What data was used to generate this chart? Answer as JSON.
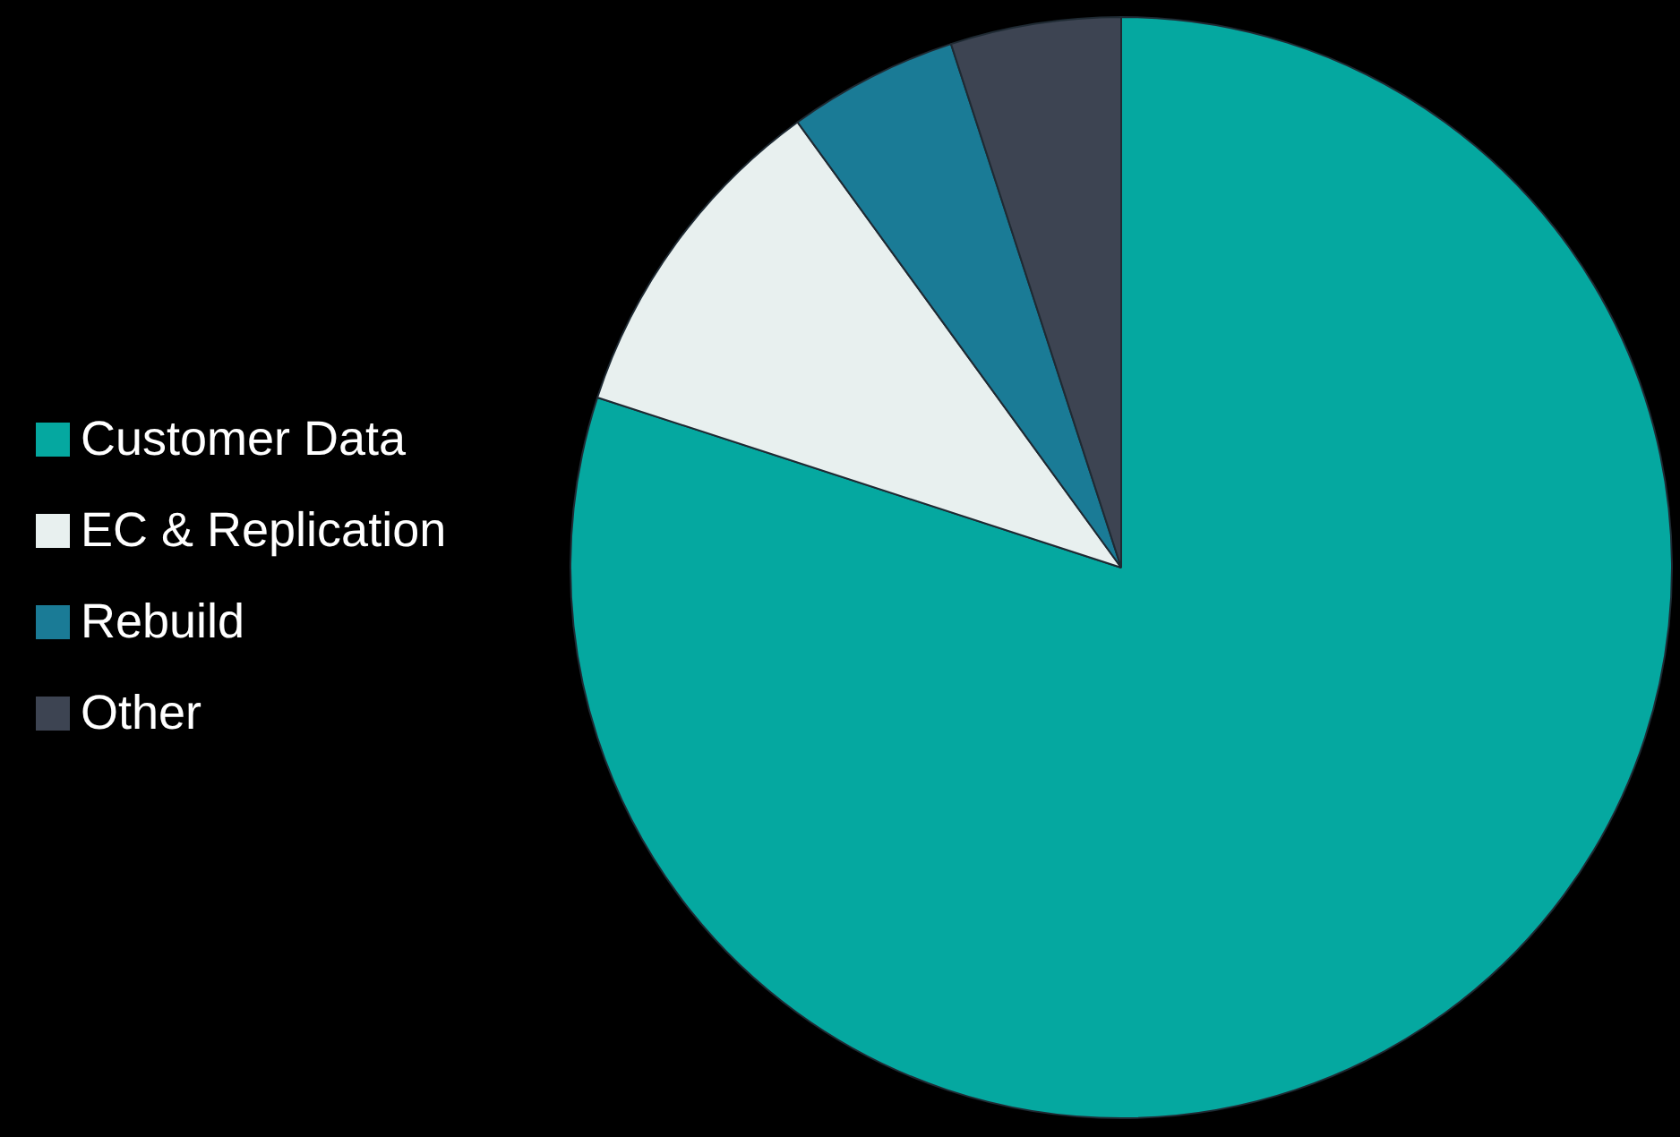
{
  "chart_data": {
    "type": "pie",
    "categories": [
      "Customer Data",
      "EC & Replication",
      "Rebuild",
      "Other"
    ],
    "values": [
      80,
      10,
      5,
      5
    ],
    "colors": [
      "#05a8a0",
      "#e8f0ef",
      "#1a7b96",
      "#3d4452"
    ],
    "legend": "left"
  }
}
